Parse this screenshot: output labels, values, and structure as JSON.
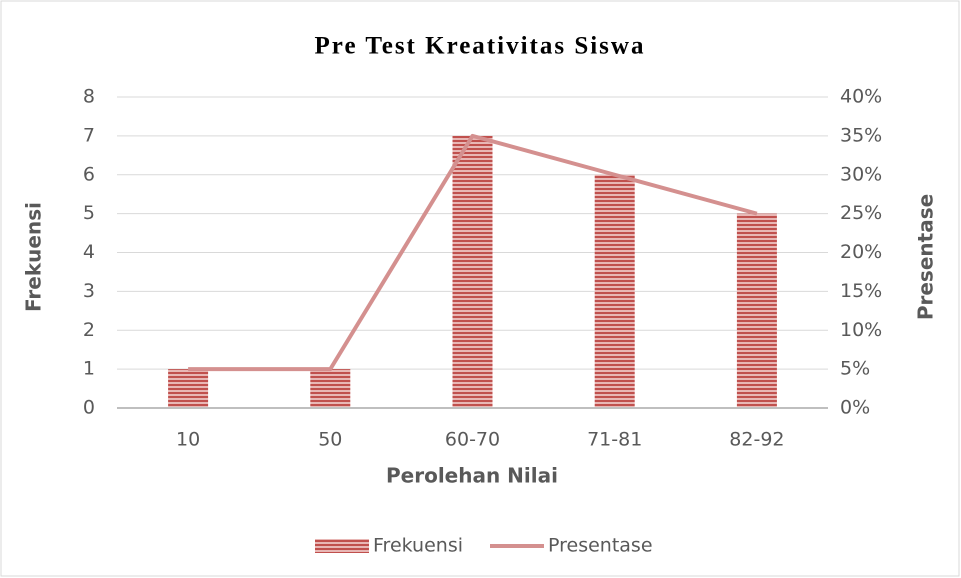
{
  "chart_data": {
    "type": "bar",
    "title": "Pre Test Kreativitas Siswa",
    "xlabel": "Perolehan Nilai",
    "ylabel": "Frekuensi",
    "y2label": "Presentase",
    "categories": [
      "10",
      "50",
      "60-70",
      "71-81",
      "82-92"
    ],
    "series": [
      {
        "name": "Frekuensi",
        "type": "bar",
        "color": "#c0504d",
        "values": [
          1,
          1,
          7,
          6,
          5
        ]
      },
      {
        "name": "Presentase",
        "type": "line",
        "axis": "y2",
        "color": "#d4908f",
        "values": [
          5,
          5,
          35,
          30,
          25
        ]
      }
    ],
    "ylim": [
      0,
      8
    ],
    "yticks": [
      0,
      1,
      2,
      3,
      4,
      5,
      6,
      7,
      8
    ],
    "y2lim": [
      0,
      40
    ],
    "y2ticks": [
      {
        "value": 0,
        "label": "0%"
      },
      {
        "value": 5,
        "label": "5%"
      },
      {
        "value": 10,
        "label": "10%"
      },
      {
        "value": 15,
        "label": "15%"
      },
      {
        "value": 20,
        "label": "20%"
      },
      {
        "value": 25,
        "label": "25%"
      },
      {
        "value": 30,
        "label": "30%"
      },
      {
        "value": 35,
        "label": "35%"
      },
      {
        "value": 40,
        "label": "40%"
      }
    ],
    "grid": true,
    "legend": "bottom"
  }
}
